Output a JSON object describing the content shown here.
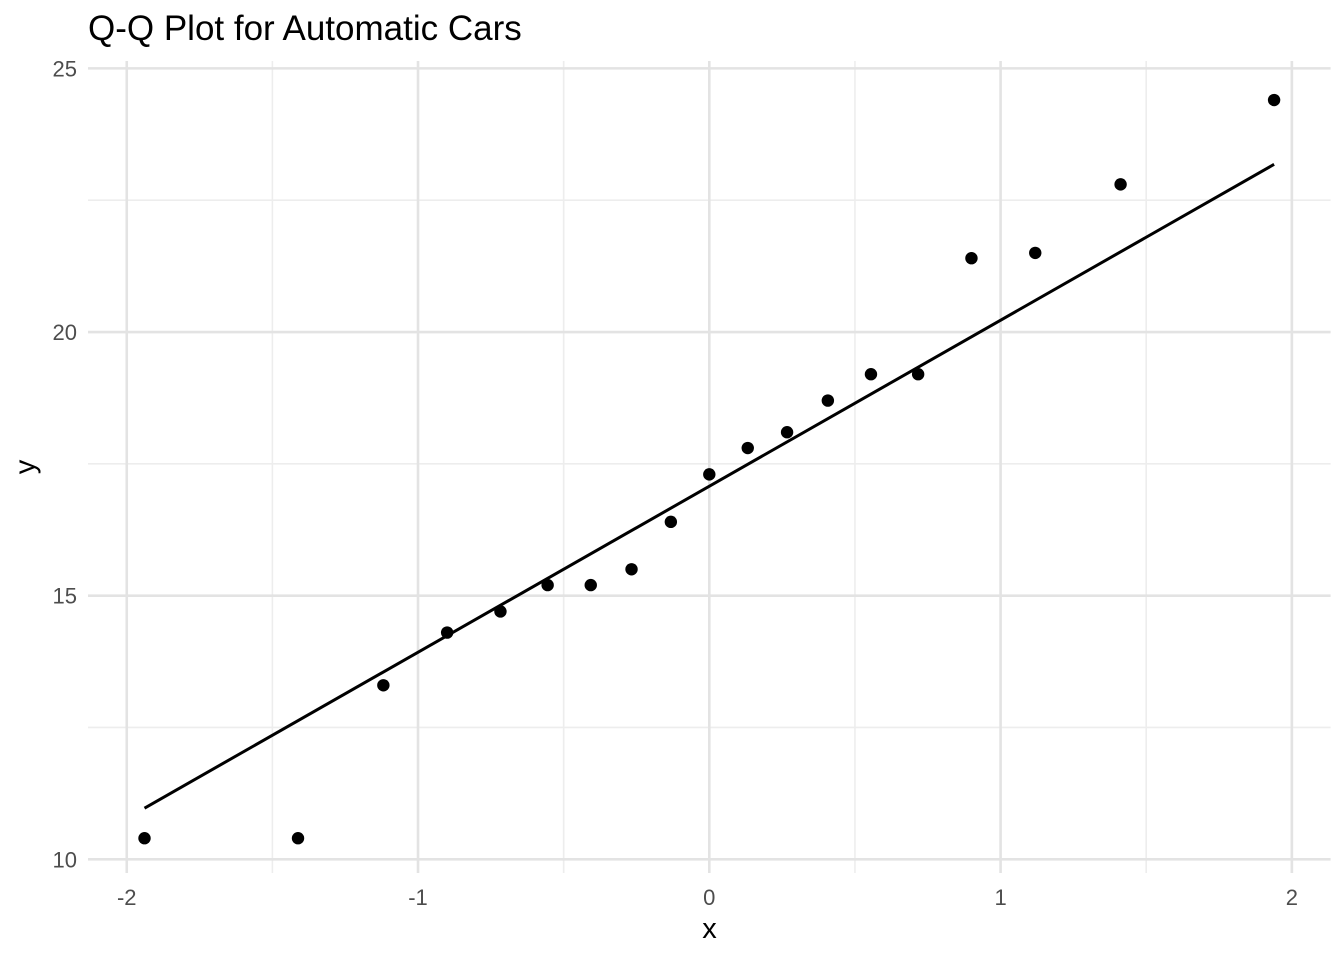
{
  "chart_data": {
    "type": "scatter",
    "title": "Q-Q Plot for Automatic Cars",
    "xlabel": "x",
    "ylabel": "y",
    "xlim": [
      -2.133,
      2.133
    ],
    "ylim": [
      9.74,
      25.14
    ],
    "x_ticks": [
      -2,
      -1,
      0,
      1,
      2
    ],
    "x_tick_labels": [
      "-2",
      "-1",
      "0",
      "1",
      "2"
    ],
    "y_ticks": [
      10,
      15,
      20,
      25
    ],
    "y_tick_labels": [
      "10",
      "15",
      "20",
      "25"
    ],
    "x_minor_ticks": [
      -1.5,
      -0.5,
      0.5,
      1.5
    ],
    "y_minor_ticks": [
      12.5,
      17.5,
      22.5
    ],
    "grid": "on",
    "legend": "none",
    "background_color": "#ffffff",
    "major_grid_color": "#e3e3e3",
    "minor_grid_color": "#ededed",
    "tick_label_color": "#4d4d4d",
    "title_color": "#000000",
    "axis_title_color": "#000000",
    "series": [
      {
        "name": "sample-quantile-points",
        "kind": "points",
        "color": "#000000",
        "x": [
          -1.939,
          -1.412,
          -1.119,
          -0.9,
          -0.717,
          -0.555,
          -0.407,
          -0.267,
          -0.132,
          0,
          0.132,
          0.267,
          0.407,
          0.555,
          0.717,
          0.9,
          1.119,
          1.412,
          1.939
        ],
        "y": [
          10.4,
          10.4,
          13.3,
          14.3,
          14.7,
          15.2,
          15.2,
          15.5,
          16.4,
          17.3,
          17.8,
          18.1,
          18.7,
          19.2,
          19.2,
          21.4,
          21.5,
          22.8,
          24.4
        ]
      },
      {
        "name": "qq-reference-line",
        "kind": "line",
        "color": "#000000",
        "x": [
          -1.939,
          1.939
        ],
        "y": [
          10.97,
          23.18
        ]
      }
    ]
  }
}
